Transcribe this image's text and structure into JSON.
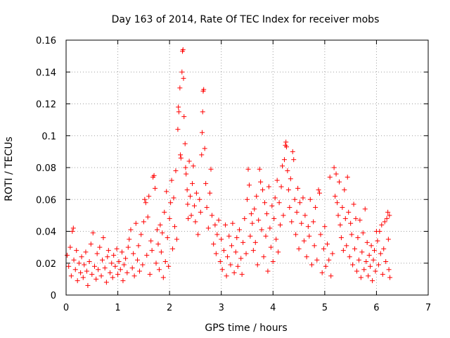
{
  "chart_data": {
    "type": "scatter",
    "title": "Day 163 of 2014, Rate Of TEC Index for receiver mobs",
    "xlabel": "GPS time / hours",
    "ylabel": "ROTI / TECUs",
    "xlim": [
      0,
      7
    ],
    "ylim": [
      0,
      0.16
    ],
    "xticks": [
      0,
      1,
      2,
      3,
      4,
      5,
      6,
      7
    ],
    "yticks": [
      0,
      0.02,
      0.04,
      0.06,
      0.08,
      0.1,
      0.12,
      0.14,
      0.16
    ],
    "ytick_labels": [
      "0",
      "0.02",
      "0.04",
      "0.06",
      "0.08",
      "0.1",
      "0.12",
      "0.14",
      "0.16"
    ],
    "grid": true,
    "marker": "+",
    "series": [
      {
        "name": "ROTI",
        "color": "#ff0000",
        "points": [
          [
            0.02,
            0.025
          ],
          [
            0.05,
            0.018
          ],
          [
            0.08,
            0.03
          ],
          [
            0.1,
            0.012
          ],
          [
            0.12,
            0.04
          ],
          [
            0.14,
            0.042
          ],
          [
            0.15,
            0.022
          ],
          [
            0.18,
            0.016
          ],
          [
            0.2,
            0.028
          ],
          [
            0.22,
            0.009
          ],
          [
            0.25,
            0.02
          ],
          [
            0.28,
            0.014
          ],
          [
            0.3,
            0.024
          ],
          [
            0.33,
            0.011
          ],
          [
            0.35,
            0.019
          ],
          [
            0.38,
            0.027
          ],
          [
            0.4,
            0.015
          ],
          [
            0.42,
            0.006
          ],
          [
            0.45,
            0.021
          ],
          [
            0.48,
            0.032
          ],
          [
            0.5,
            0.013
          ],
          [
            0.52,
            0.039
          ],
          [
            0.55,
            0.018
          ],
          [
            0.58,
            0.01
          ],
          [
            0.6,
            0.026
          ],
          [
            0.62,
            0.016
          ],
          [
            0.65,
            0.03
          ],
          [
            0.68,
            0.012
          ],
          [
            0.7,
            0.022
          ],
          [
            0.72,
            0.036
          ],
          [
            0.75,
            0.017
          ],
          [
            0.78,
            0.008
          ],
          [
            0.8,
            0.024
          ],
          [
            0.82,
            0.028
          ],
          [
            0.85,
            0.014
          ],
          [
            0.88,
            0.02
          ],
          [
            0.9,
            0.011
          ],
          [
            0.92,
            0.025
          ],
          [
            0.95,
            0.018
          ],
          [
            0.98,
            0.029
          ],
          [
            1.0,
            0.013
          ],
          [
            1.02,
            0.021
          ],
          [
            1.05,
            0.016
          ],
          [
            1.08,
            0.027
          ],
          [
            1.1,
            0.009
          ],
          [
            1.12,
            0.019
          ],
          [
            1.15,
            0.023
          ],
          [
            1.18,
            0.014
          ],
          [
            1.2,
            0.03
          ],
          [
            1.22,
            0.035
          ],
          [
            1.25,
            0.041
          ],
          [
            1.28,
            0.017
          ],
          [
            1.3,
            0.026
          ],
          [
            1.32,
            0.012
          ],
          [
            1.35,
            0.045
          ],
          [
            1.38,
            0.022
          ],
          [
            1.4,
            0.031
          ],
          [
            1.42,
            0.015
          ],
          [
            1.45,
            0.038
          ],
          [
            1.48,
            0.019
          ],
          [
            1.5,
            0.046
          ],
          [
            1.52,
            0.06
          ],
          [
            1.54,
            0.058
          ],
          [
            1.56,
            0.025
          ],
          [
            1.58,
            0.049
          ],
          [
            1.6,
            0.062
          ],
          [
            1.62,
            0.013
          ],
          [
            1.64,
            0.034
          ],
          [
            1.66,
            0.028
          ],
          [
            1.68,
            0.074
          ],
          [
            1.7,
            0.075
          ],
          [
            1.72,
            0.067
          ],
          [
            1.74,
            0.02
          ],
          [
            1.76,
            0.041
          ],
          [
            1.78,
            0.032
          ],
          [
            1.8,
            0.016
          ],
          [
            1.82,
            0.044
          ],
          [
            1.84,
            0.027
          ],
          [
            1.86,
            0.039
          ],
          [
            1.88,
            0.011
          ],
          [
            1.9,
            0.052
          ],
          [
            1.92,
            0.021
          ],
          [
            1.94,
            0.065
          ],
          [
            1.96,
            0.036
          ],
          [
            1.98,
            0.018
          ],
          [
            2.0,
            0.048
          ],
          [
            2.02,
            0.058
          ],
          [
            2.04,
            0.072
          ],
          [
            2.06,
            0.029
          ],
          [
            2.08,
            0.061
          ],
          [
            2.1,
            0.043
          ],
          [
            2.12,
            0.078
          ],
          [
            2.14,
            0.035
          ],
          [
            2.16,
            0.104
          ],
          [
            2.17,
            0.118
          ],
          [
            2.18,
            0.115
          ],
          [
            2.2,
            0.13
          ],
          [
            2.21,
            0.088
          ],
          [
            2.22,
            0.086
          ],
          [
            2.24,
            0.14
          ],
          [
            2.25,
            0.153
          ],
          [
            2.26,
            0.154
          ],
          [
            2.27,
            0.136
          ],
          [
            2.28,
            0.112
          ],
          [
            2.3,
            0.095
          ],
          [
            2.31,
            0.08
          ],
          [
            2.32,
            0.076
          ],
          [
            2.34,
            0.066
          ],
          [
            2.35,
            0.057
          ],
          [
            2.36,
            0.048
          ],
          [
            2.38,
            0.084
          ],
          [
            2.4,
            0.062
          ],
          [
            2.42,
            0.05
          ],
          [
            2.44,
            0.07
          ],
          [
            2.46,
            0.081
          ],
          [
            2.48,
            0.056
          ],
          [
            2.5,
            0.046
          ],
          [
            2.52,
            0.064
          ],
          [
            2.55,
            0.038
          ],
          [
            2.58,
            0.06
          ],
          [
            2.6,
            0.052
          ],
          [
            2.62,
            0.088
          ],
          [
            2.63,
            0.102
          ],
          [
            2.64,
            0.115
          ],
          [
            2.65,
            0.128
          ],
          [
            2.66,
            0.129
          ],
          [
            2.68,
            0.092
          ],
          [
            2.7,
            0.07
          ],
          [
            2.72,
            0.055
          ],
          [
            2.75,
            0.042
          ],
          [
            2.78,
            0.064
          ],
          [
            2.8,
            0.079
          ],
          [
            2.82,
            0.05
          ],
          [
            2.85,
            0.032
          ],
          [
            2.88,
            0.044
          ],
          [
            2.9,
            0.026
          ],
          [
            2.92,
            0.038
          ],
          [
            2.95,
            0.047
          ],
          [
            2.98,
            0.021
          ],
          [
            3.0,
            0.035
          ],
          [
            3.02,
            0.016
          ],
          [
            3.05,
            0.028
          ],
          [
            3.08,
            0.044
          ],
          [
            3.1,
            0.012
          ],
          [
            3.12,
            0.024
          ],
          [
            3.15,
            0.037
          ],
          [
            3.18,
            0.019
          ],
          [
            3.2,
            0.031
          ],
          [
            3.22,
            0.045
          ],
          [
            3.25,
            0.014
          ],
          [
            3.28,
            0.027
          ],
          [
            3.3,
            0.036
          ],
          [
            3.32,
            0.018
          ],
          [
            3.35,
            0.041
          ],
          [
            3.38,
            0.023
          ],
          [
            3.4,
            0.013
          ],
          [
            3.42,
            0.033
          ],
          [
            3.45,
            0.048
          ],
          [
            3.48,
            0.026
          ],
          [
            3.5,
            0.06
          ],
          [
            3.52,
            0.079
          ],
          [
            3.54,
            0.069
          ],
          [
            3.56,
            0.037
          ],
          [
            3.58,
            0.051
          ],
          [
            3.6,
            0.045
          ],
          [
            3.62,
            0.028
          ],
          [
            3.64,
            0.054
          ],
          [
            3.66,
            0.033
          ],
          [
            3.68,
            0.062
          ],
          [
            3.7,
            0.019
          ],
          [
            3.72,
            0.047
          ],
          [
            3.74,
            0.079
          ],
          [
            3.76,
            0.071
          ],
          [
            3.78,
            0.041
          ],
          [
            3.8,
            0.066
          ],
          [
            3.82,
            0.024
          ],
          [
            3.84,
            0.058
          ],
          [
            3.86,
            0.037
          ],
          [
            3.88,
            0.051
          ],
          [
            3.9,
            0.015
          ],
          [
            3.92,
            0.068
          ],
          [
            3.94,
            0.042
          ],
          [
            3.96,
            0.03
          ],
          [
            3.98,
            0.056
          ],
          [
            4.0,
            0.021
          ],
          [
            4.02,
            0.048
          ],
          [
            4.04,
            0.061
          ],
          [
            4.06,
            0.035
          ],
          [
            4.08,
            0.072
          ],
          [
            4.1,
            0.027
          ],
          [
            4.12,
            0.058
          ],
          [
            4.14,
            0.044
          ],
          [
            4.16,
            0.068
          ],
          [
            4.18,
            0.081
          ],
          [
            4.2,
            0.05
          ],
          [
            4.22,
            0.085
          ],
          [
            4.24,
            0.094
          ],
          [
            4.25,
            0.096
          ],
          [
            4.26,
            0.093
          ],
          [
            4.28,
            0.078
          ],
          [
            4.3,
            0.066
          ],
          [
            4.32,
            0.055
          ],
          [
            4.34,
            0.073
          ],
          [
            4.36,
            0.046
          ],
          [
            4.38,
            0.09
          ],
          [
            4.4,
            0.085
          ],
          [
            4.42,
            0.06
          ],
          [
            4.44,
            0.038
          ],
          [
            4.46,
            0.052
          ],
          [
            4.48,
            0.067
          ],
          [
            4.5,
            0.029
          ],
          [
            4.52,
            0.058
          ],
          [
            4.55,
            0.045
          ],
          [
            4.58,
            0.061
          ],
          [
            4.6,
            0.034
          ],
          [
            4.62,
            0.05
          ],
          [
            4.65,
            0.024
          ],
          [
            4.68,
            0.043
          ],
          [
            4.7,
            0.037
          ],
          [
            4.72,
            0.06
          ],
          [
            4.75,
            0.019
          ],
          [
            4.78,
            0.046
          ],
          [
            4.8,
            0.031
          ],
          [
            4.82,
            0.055
          ],
          [
            4.85,
            0.022
          ],
          [
            4.88,
            0.066
          ],
          [
            4.9,
            0.064
          ],
          [
            4.92,
            0.038
          ],
          [
            4.95,
            0.014
          ],
          [
            4.98,
            0.029
          ],
          [
            5.0,
            0.043
          ],
          [
            5.02,
            0.018
          ],
          [
            5.05,
            0.032
          ],
          [
            5.08,
            0.022
          ],
          [
            5.1,
            0.074
          ],
          [
            5.12,
            0.012
          ],
          [
            5.15,
            0.026
          ],
          [
            5.18,
            0.08
          ],
          [
            5.2,
            0.062
          ],
          [
            5.22,
            0.076
          ],
          [
            5.24,
            0.058
          ],
          [
            5.26,
            0.05
          ],
          [
            5.28,
            0.071
          ],
          [
            5.3,
            0.044
          ],
          [
            5.32,
            0.036
          ],
          [
            5.34,
            0.055
          ],
          [
            5.36,
            0.028
          ],
          [
            5.38,
            0.066
          ],
          [
            5.4,
            0.048
          ],
          [
            5.42,
            0.031
          ],
          [
            5.44,
            0.074
          ],
          [
            5.46,
            0.052
          ],
          [
            5.48,
            0.024
          ],
          [
            5.5,
            0.045
          ],
          [
            5.52,
            0.038
          ],
          [
            5.54,
            0.019
          ],
          [
            5.56,
            0.057
          ],
          [
            5.58,
            0.029
          ],
          [
            5.6,
            0.048
          ],
          [
            5.62,
            0.015
          ],
          [
            5.64,
            0.036
          ],
          [
            5.66,
            0.022
          ],
          [
            5.68,
            0.047
          ],
          [
            5.7,
            0.011
          ],
          [
            5.72,
            0.027
          ],
          [
            5.74,
            0.039
          ],
          [
            5.76,
            0.016
          ],
          [
            5.78,
            0.054
          ],
          [
            5.8,
            0.021
          ],
          [
            5.82,
            0.033
          ],
          [
            5.84,
            0.012
          ],
          [
            5.86,
            0.025
          ],
          [
            5.88,
            0.018
          ],
          [
            5.9,
            0.031
          ],
          [
            5.92,
            0.009
          ],
          [
            5.94,
            0.022
          ],
          [
            5.96,
            0.028
          ],
          [
            5.98,
            0.015
          ],
          [
            6.0,
            0.04
          ],
          [
            6.02,
            0.034
          ],
          [
            6.04,
            0.019
          ],
          [
            6.06,
            0.04
          ],
          [
            6.08,
            0.026
          ],
          [
            6.1,
            0.044
          ],
          [
            6.12,
            0.013
          ],
          [
            6.14,
            0.029
          ],
          [
            6.16,
            0.046
          ],
          [
            6.18,
            0.021
          ],
          [
            6.2,
            0.048
          ],
          [
            6.22,
            0.052
          ],
          [
            6.23,
            0.035
          ],
          [
            6.24,
            0.016
          ],
          [
            6.25,
            0.05
          ],
          [
            6.26,
            0.011
          ]
        ]
      }
    ]
  }
}
